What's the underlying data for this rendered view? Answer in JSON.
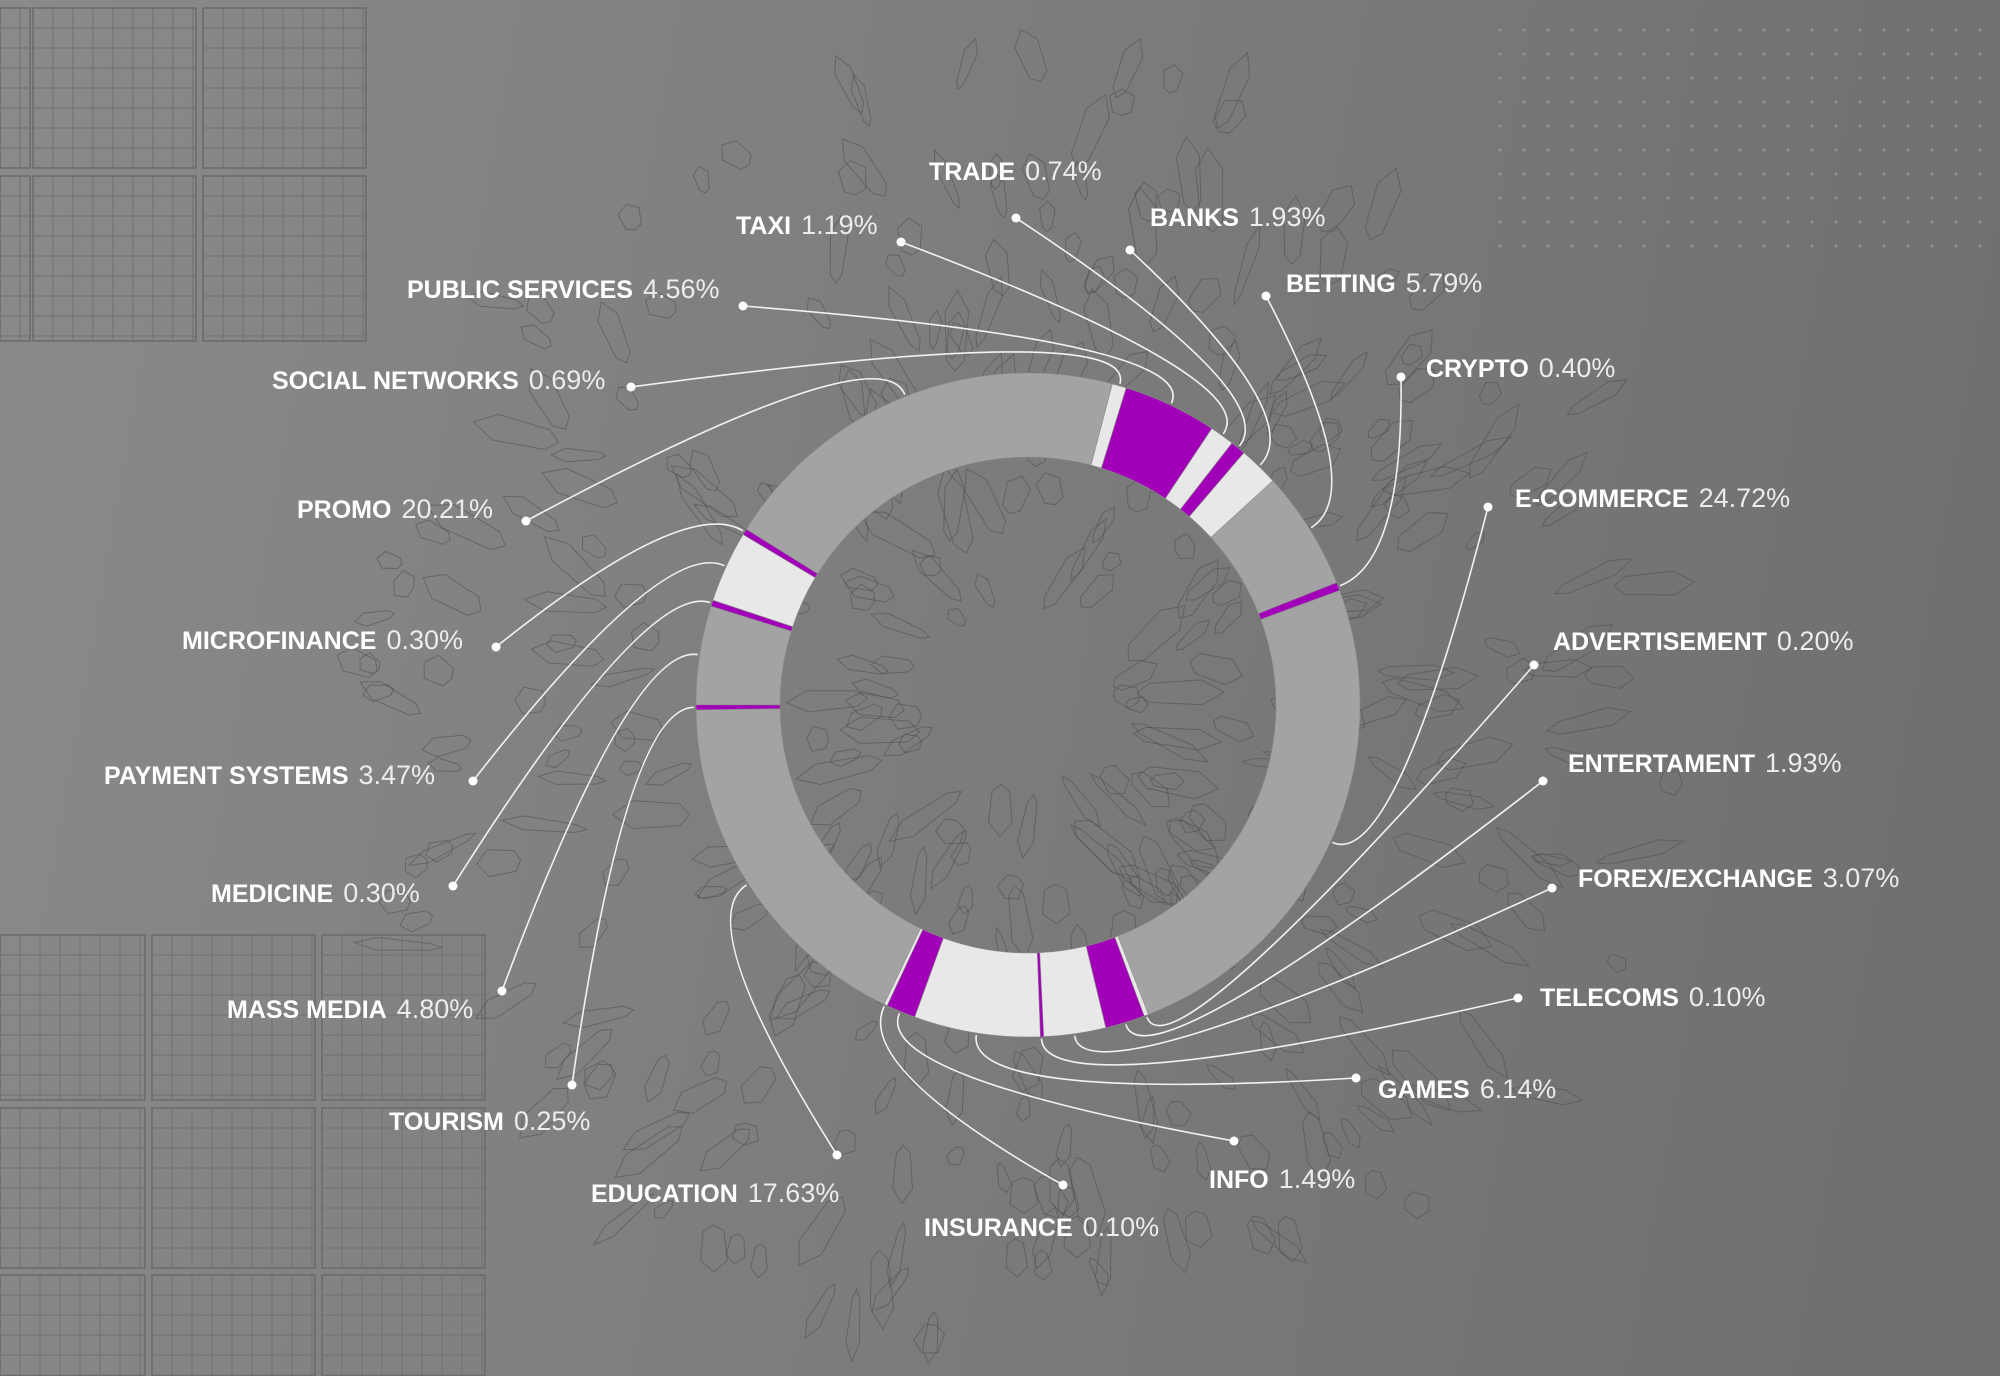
{
  "colors": {
    "background": "#7d7d7d",
    "gray_segment": "#a3a3a3",
    "light_segment": "#e8e8e8",
    "purple_segment": "#a200b8",
    "label_text": "#ffffff",
    "leader_line": "#f2f2f2"
  },
  "chart_data": {
    "type": "pie",
    "variant": "donut",
    "legend": "labels placed around the ring with leader lines",
    "slices": [
      {
        "label": "E-COMMERCE",
        "value": 24.72,
        "value_text": "24.72%",
        "color": "gray"
      },
      {
        "label": "ADVERTISEMENT",
        "value": 0.2,
        "value_text": "0.20%",
        "color": "light"
      },
      {
        "label": "ENTERTAMENT",
        "value": 1.93,
        "value_text": "1.93%",
        "color": "purple"
      },
      {
        "label": "FOREX/EXCHANGE",
        "value": 3.07,
        "value_text": "3.07%",
        "color": "light"
      },
      {
        "label": "TELECOMS",
        "value": 0.1,
        "value_text": "0.10%",
        "color": "purple"
      },
      {
        "label": "GAMES",
        "value": 6.14,
        "value_text": "6.14%",
        "color": "light"
      },
      {
        "label": "INFO",
        "value": 1.49,
        "value_text": "1.49%",
        "color": "purple"
      },
      {
        "label": "INSURANCE",
        "value": 0.1,
        "value_text": "0.10%",
        "color": "light"
      },
      {
        "label": "EDUCATION",
        "value": 17.63,
        "value_text": "17.63%",
        "color": "gray"
      },
      {
        "label": "TOURISM",
        "value": 0.25,
        "value_text": "0.25%",
        "color": "purple"
      },
      {
        "label": "MASS MEDIA",
        "value": 4.8,
        "value_text": "4.80%",
        "color": "gray"
      },
      {
        "label": "MEDICINE",
        "value": 0.3,
        "value_text": "0.30%",
        "color": "purple"
      },
      {
        "label": "PAYMENT SYSTEMS",
        "value": 3.47,
        "value_text": "3.47%",
        "color": "light"
      },
      {
        "label": "MICROFINANCE",
        "value": 0.3,
        "value_text": "0.30%",
        "color": "purple"
      },
      {
        "label": "PROMO",
        "value": 20.21,
        "value_text": "20.21%",
        "color": "gray"
      },
      {
        "label": "SOCIAL NETWORKS",
        "value": 0.69,
        "value_text": "0.69%",
        "color": "light"
      },
      {
        "label": "PUBLIC SERVICES",
        "value": 4.56,
        "value_text": "4.56%",
        "color": "purple"
      },
      {
        "label": "TAXI",
        "value": 1.19,
        "value_text": "1.19%",
        "color": "light"
      },
      {
        "label": "TRADE",
        "value": 0.74,
        "value_text": "0.74%",
        "color": "purple"
      },
      {
        "label": "BANKS",
        "value": 1.93,
        "value_text": "1.93%",
        "color": "light"
      },
      {
        "label": "BETTING",
        "value": 5.79,
        "value_text": "5.79%",
        "color": "gray"
      },
      {
        "label": "CRYPTO",
        "value": 0.4,
        "value_text": "0.40%",
        "color": "purple"
      }
    ]
  }
}
